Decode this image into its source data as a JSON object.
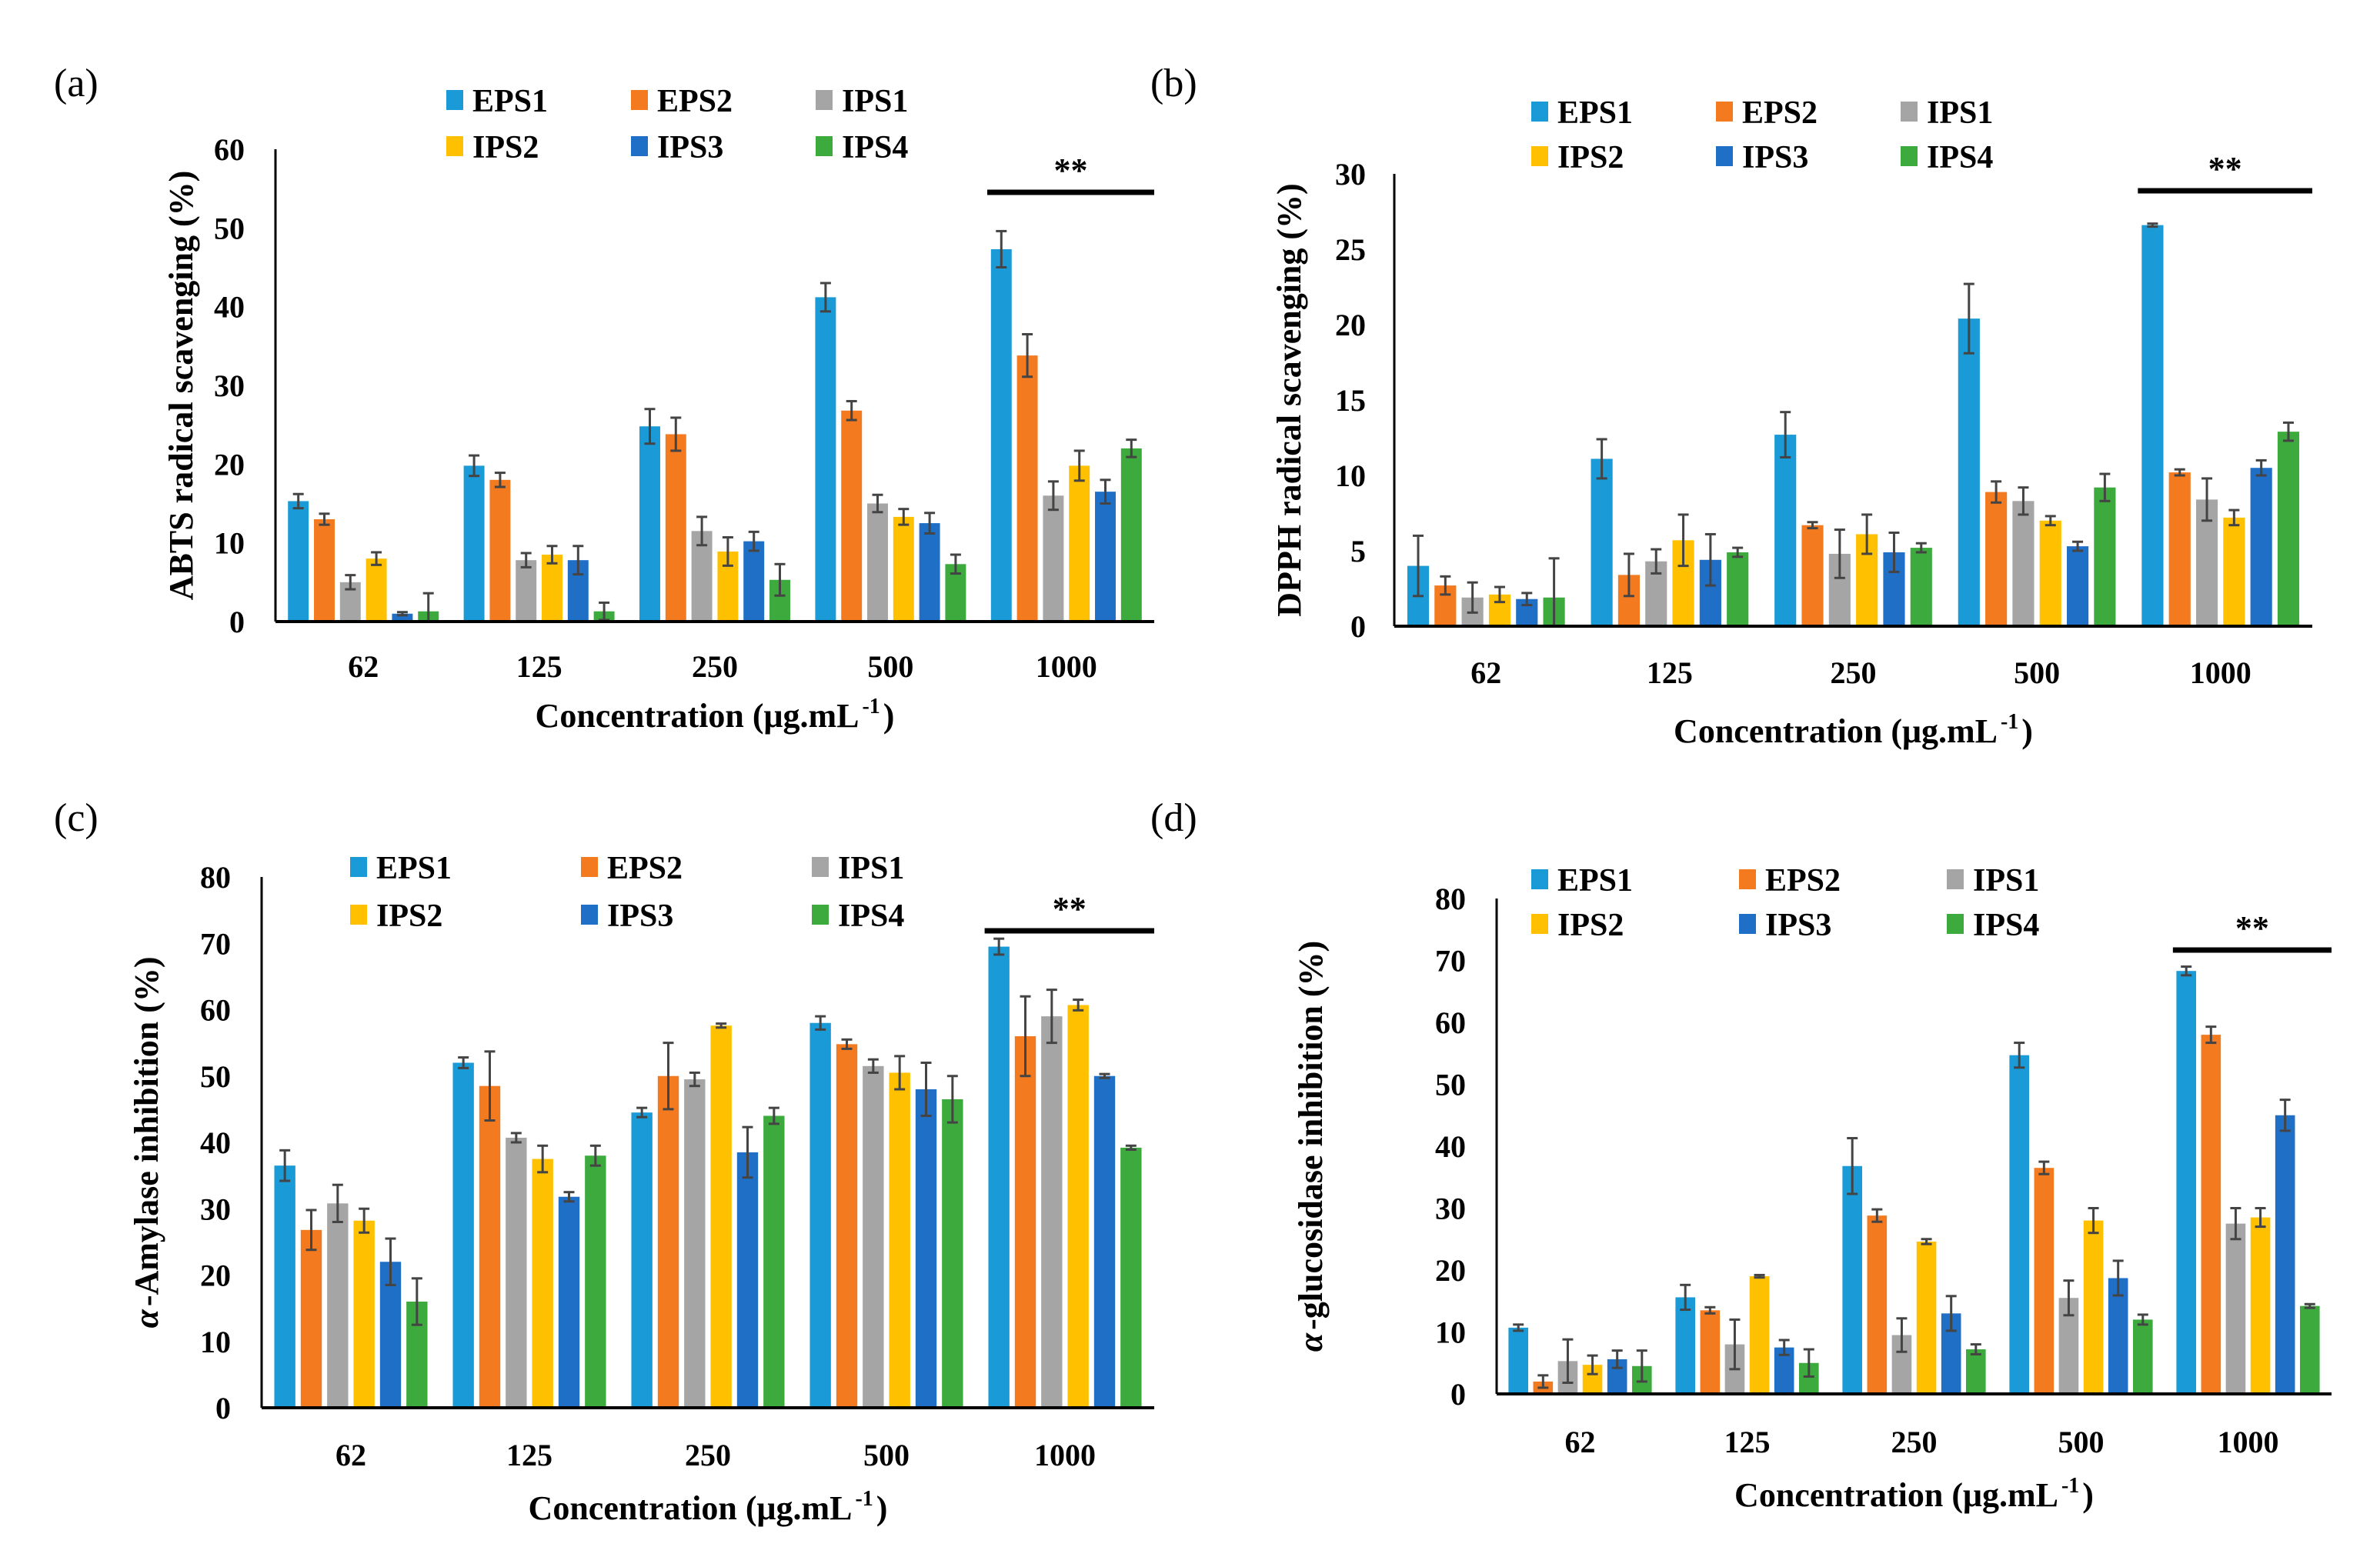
{
  "series_names": [
    "EPS1",
    "EPS2",
    "IPS1",
    "IPS2",
    "IPS3",
    "IPS4"
  ],
  "series_colors": [
    "#1A9AD6",
    "#F47A20",
    "#A5A5A5",
    "#FFC000",
    "#1F6FC6",
    "#3DAA3D"
  ],
  "chart_data": [
    {
      "panel": "(a)",
      "type": "bar",
      "ylabel": "ABTS radical scavenging (%)",
      "xlabel": "Concentration (μg.mL",
      "xlabel_sup": "-1",
      "xlabel_end": ")",
      "categories": [
        "62",
        "125",
        "250",
        "500",
        "1000"
      ],
      "ylim": [
        0,
        60
      ],
      "yticks": [
        0,
        10,
        20,
        30,
        40,
        50,
        60
      ],
      "annotation": "**",
      "annotation_category": "1000",
      "series": [
        {
          "name": "EPS1",
          "values": [
            15.3,
            19.8,
            24.8,
            41.2,
            47.3
          ],
          "errors": [
            0.9,
            1.3,
            2.2,
            1.8,
            2.3
          ]
        },
        {
          "name": "EPS2",
          "values": [
            13.0,
            18.0,
            23.8,
            26.8,
            33.8
          ],
          "errors": [
            0.7,
            0.9,
            2.1,
            1.2,
            2.7
          ]
        },
        {
          "name": "IPS1",
          "values": [
            5.0,
            7.8,
            11.5,
            15.0,
            16.0
          ],
          "errors": [
            0.9,
            0.9,
            1.8,
            1.1,
            1.8
          ]
        },
        {
          "name": "IPS2",
          "values": [
            8.0,
            8.5,
            8.9,
            13.3,
            19.8
          ],
          "errors": [
            0.8,
            1.1,
            1.8,
            1.0,
            1.9
          ]
        },
        {
          "name": "IPS3",
          "values": [
            1.0,
            7.8,
            10.2,
            12.5,
            16.5
          ],
          "errors": [
            0.2,
            1.8,
            1.2,
            1.3,
            1.5
          ]
        },
        {
          "name": "IPS4",
          "values": [
            1.3,
            1.3,
            5.3,
            7.3,
            22.0
          ],
          "errors": [
            2.3,
            1.1,
            2.0,
            1.2,
            1.1
          ]
        }
      ]
    },
    {
      "panel": "(b)",
      "type": "bar",
      "ylabel": "DPPH radical scavenging (%)",
      "xlabel": "Concentration (μg.mL",
      "xlabel_sup": "-1",
      "xlabel_end": ")",
      "categories": [
        "62",
        "125",
        "250",
        "500",
        "1000"
      ],
      "ylim": [
        0,
        30
      ],
      "yticks": [
        0,
        5,
        10,
        15,
        20,
        25,
        30
      ],
      "annotation": "**",
      "annotation_category": "1000",
      "series": [
        {
          "name": "EPS1",
          "values": [
            4.0,
            11.1,
            12.7,
            20.4,
            26.6
          ],
          "errors": [
            2.0,
            1.3,
            1.5,
            2.3,
            0.1
          ]
        },
        {
          "name": "EPS2",
          "values": [
            2.7,
            3.4,
            6.7,
            8.9,
            10.2
          ],
          "errors": [
            0.6,
            1.4,
            0.2,
            0.7,
            0.2
          ]
        },
        {
          "name": "IPS1",
          "values": [
            1.9,
            4.3,
            4.8,
            8.3,
            8.4
          ],
          "errors": [
            1.0,
            0.8,
            1.6,
            0.9,
            1.4
          ]
        },
        {
          "name": "IPS2",
          "values": [
            2.1,
            5.7,
            6.1,
            7.0,
            7.2
          ],
          "errors": [
            0.5,
            1.7,
            1.3,
            0.3,
            0.5
          ]
        },
        {
          "name": "IPS3",
          "values": [
            1.8,
            4.4,
            4.9,
            5.3,
            10.5
          ],
          "errors": [
            0.4,
            1.7,
            1.3,
            0.3,
            0.5
          ]
        },
        {
          "name": "IPS4",
          "values": [
            1.9,
            4.9,
            5.2,
            9.2,
            12.9
          ],
          "errors": [
            2.6,
            0.3,
            0.3,
            0.9,
            0.6
          ]
        }
      ]
    },
    {
      "panel": "(c)",
      "type": "bar",
      "ylabel_greek": "α",
      "ylabel": "-Amylase inhibition (%)",
      "xlabel": "Concentration (μg.mL",
      "xlabel_sup": "-1",
      "xlabel_end": ")",
      "categories": [
        "62",
        "125",
        "250",
        "500",
        "1000"
      ],
      "ylim": [
        0,
        80
      ],
      "yticks": [
        0,
        10,
        20,
        30,
        40,
        50,
        60,
        70,
        80
      ],
      "annotation": "**",
      "annotation_category": "1000",
      "series": [
        {
          "name": "EPS1",
          "values": [
            36.5,
            52.0,
            44.5,
            58.0,
            69.5
          ],
          "errors": [
            2.3,
            0.8,
            0.7,
            1.0,
            1.2
          ]
        },
        {
          "name": "EPS2",
          "values": [
            26.8,
            48.5,
            50.0,
            54.8,
            56.0
          ],
          "errors": [
            3.0,
            5.2,
            5.0,
            0.7,
            6.0
          ]
        },
        {
          "name": "IPS1",
          "values": [
            30.8,
            40.7,
            49.5,
            51.5,
            59.0
          ],
          "errors": [
            2.8,
            0.7,
            1.0,
            1.0,
            4.0
          ]
        },
        {
          "name": "IPS2",
          "values": [
            28.2,
            37.5,
            57.6,
            50.5,
            60.7
          ],
          "errors": [
            1.8,
            2.0,
            0.3,
            2.5,
            0.8
          ]
        },
        {
          "name": "IPS3",
          "values": [
            22.0,
            31.8,
            38.5,
            48.0,
            50.0
          ],
          "errors": [
            3.5,
            0.7,
            3.8,
            4.0,
            0.3
          ]
        },
        {
          "name": "IPS4",
          "values": [
            16.0,
            38.0,
            44.0,
            46.5,
            39.2
          ],
          "errors": [
            3.5,
            1.5,
            1.2,
            3.5,
            0.3
          ]
        }
      ]
    },
    {
      "panel": "(d)",
      "type": "bar",
      "ylabel_greek": "α",
      "ylabel": "-glucosidase inhibition (%)",
      "xlabel": "Concentration (μg.mL",
      "xlabel_sup": "-1",
      "xlabel_end": ")",
      "categories": [
        "62",
        "125",
        "250",
        "500",
        "1000"
      ],
      "ylim": [
        0,
        80
      ],
      "yticks": [
        0,
        10,
        20,
        30,
        40,
        50,
        60,
        70,
        80
      ],
      "annotation": "**",
      "annotation_category": "1000",
      "series": [
        {
          "name": "EPS1",
          "values": [
            10.7,
            15.6,
            36.8,
            54.7,
            68.3
          ],
          "errors": [
            0.5,
            2.0,
            4.5,
            2.0,
            0.7
          ]
        },
        {
          "name": "EPS2",
          "values": [
            2.0,
            13.5,
            28.8,
            36.5,
            58.0
          ],
          "errors": [
            1.0,
            0.5,
            1.0,
            1.0,
            1.3
          ]
        },
        {
          "name": "IPS1",
          "values": [
            5.3,
            8.0,
            9.5,
            15.5,
            27.5
          ],
          "errors": [
            3.5,
            4.0,
            2.7,
            2.8,
            2.5
          ]
        },
        {
          "name": "IPS2",
          "values": [
            4.7,
            19.0,
            24.6,
            28.0,
            28.5
          ],
          "errors": [
            1.5,
            0.2,
            0.4,
            2.0,
            1.5
          ]
        },
        {
          "name": "IPS3",
          "values": [
            5.6,
            7.5,
            13.0,
            18.7,
            45.0
          ],
          "errors": [
            1.4,
            1.2,
            2.8,
            2.8,
            2.5
          ]
        },
        {
          "name": "IPS4",
          "values": [
            4.5,
            5.0,
            7.2,
            12.0,
            14.2
          ],
          "errors": [
            2.5,
            2.2,
            0.8,
            0.8,
            0.3
          ]
        }
      ]
    }
  ]
}
